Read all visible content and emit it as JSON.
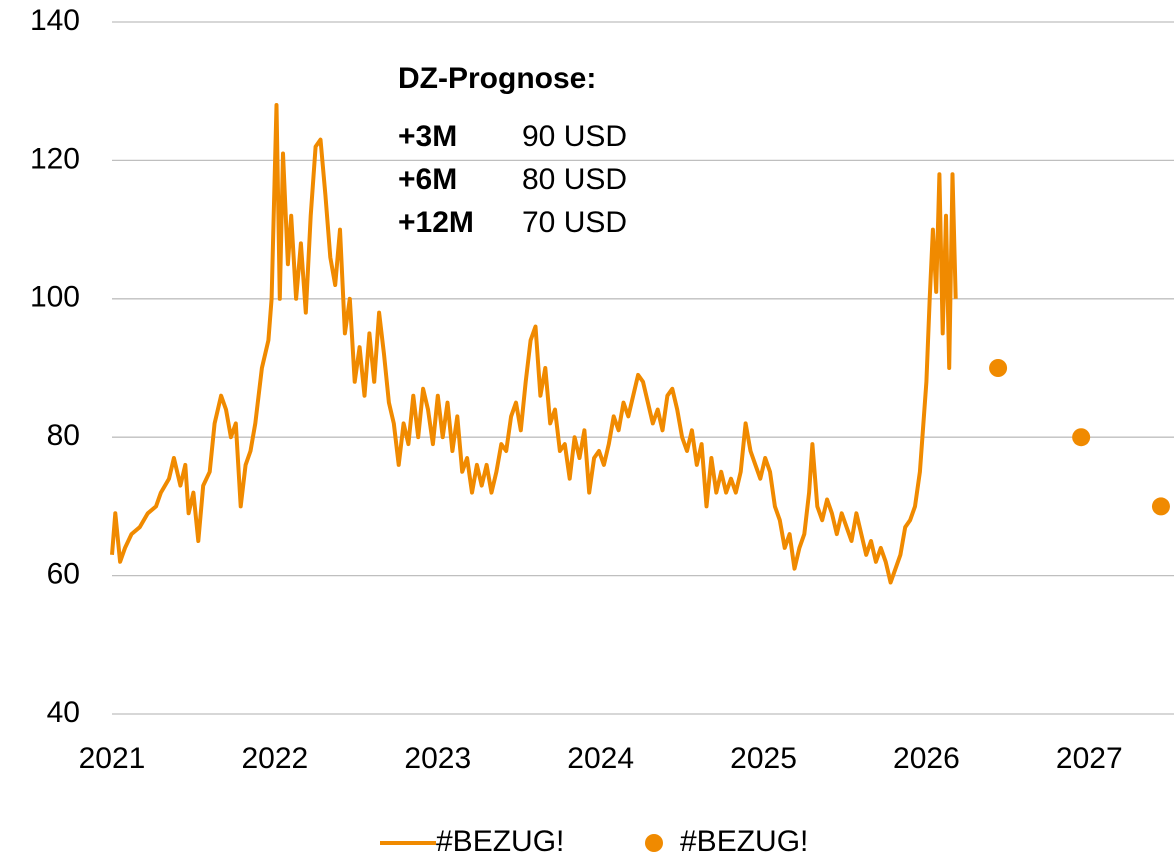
{
  "chart_data": {
    "type": "line",
    "annotation": {
      "title": "DZ-Prognose:",
      "rows": [
        {
          "label": "+3M",
          "text": "90 USD"
        },
        {
          "label": "+6M",
          "text": "80 USD"
        },
        {
          "label": "+12M",
          "text": "70 USD"
        }
      ]
    },
    "xlim": [
      2021,
      2027.52
    ],
    "xticks": [
      2021,
      2022,
      2023,
      2024,
      2025,
      2026,
      2027
    ],
    "ylim": [
      40,
      140
    ],
    "yticks": [
      40,
      60,
      80,
      100,
      120,
      140
    ],
    "grid": true,
    "legend": "bottom",
    "series": [
      {
        "name": "#BEZUG!",
        "type": "line",
        "color": "#f08a00",
        "x": [
          2021.0,
          2021.02,
          2021.05,
          2021.08,
          2021.12,
          2021.17,
          2021.22,
          2021.27,
          2021.3,
          2021.35,
          2021.38,
          2021.42,
          2021.45,
          2021.47,
          2021.5,
          2021.53,
          2021.56,
          2021.6,
          2021.63,
          2021.67,
          2021.7,
          2021.73,
          2021.76,
          2021.79,
          2021.82,
          2021.85,
          2021.88,
          2021.92,
          2021.96,
          2021.98,
          2022.01,
          2022.03,
          2022.05,
          2022.08,
          2022.1,
          2022.13,
          2022.16,
          2022.19,
          2022.22,
          2022.25,
          2022.28,
          2022.31,
          2022.34,
          2022.37,
          2022.4,
          2022.43,
          2022.46,
          2022.49,
          2022.52,
          2022.55,
          2022.58,
          2022.61,
          2022.64,
          2022.67,
          2022.7,
          2022.73,
          2022.76,
          2022.79,
          2022.82,
          2022.85,
          2022.88,
          2022.91,
          2022.94,
          2022.97,
          2023.0,
          2023.03,
          2023.06,
          2023.09,
          2023.12,
          2023.15,
          2023.18,
          2023.21,
          2023.24,
          2023.27,
          2023.3,
          2023.33,
          2023.36,
          2023.39,
          2023.42,
          2023.45,
          2023.48,
          2023.51,
          2023.54,
          2023.57,
          2023.6,
          2023.63,
          2023.66,
          2023.69,
          2023.72,
          2023.75,
          2023.78,
          2023.81,
          2023.84,
          2023.87,
          2023.9,
          2023.93,
          2023.96,
          2023.99,
          2024.02,
          2024.05,
          2024.08,
          2024.11,
          2024.14,
          2024.17,
          2024.2,
          2024.23,
          2024.26,
          2024.29,
          2024.32,
          2024.35,
          2024.38,
          2024.41,
          2024.44,
          2024.47,
          2024.5,
          2024.53,
          2024.56,
          2024.59,
          2024.62,
          2024.65,
          2024.68,
          2024.71,
          2024.74,
          2024.77,
          2024.8,
          2024.83,
          2024.86,
          2024.89,
          2024.92,
          2024.95,
          2024.98,
          2025.01,
          2025.04,
          2025.07,
          2025.1,
          2025.13,
          2025.16,
          2025.19,
          2025.22,
          2025.25,
          2025.28,
          2025.3,
          2025.33,
          2025.36,
          2025.39,
          2025.42,
          2025.45,
          2025.48,
          2025.51,
          2025.54,
          2025.57,
          2025.6,
          2025.63,
          2025.66,
          2025.69,
          2025.72,
          2025.75,
          2025.78,
          2025.81,
          2025.84,
          2025.87,
          2025.9,
          2025.93,
          2025.96,
          2026.0,
          2026.02,
          2026.04,
          2026.06,
          2026.08,
          2026.1,
          2026.12,
          2026.14,
          2026.16,
          2026.18
        ],
        "values": [
          63,
          69,
          62,
          64,
          66,
          67,
          69,
          70,
          72,
          74,
          77,
          73,
          76,
          69,
          72,
          65,
          73,
          75,
          82,
          86,
          84,
          80,
          82,
          70,
          76,
          78,
          82,
          90,
          94,
          100,
          128,
          100,
          121,
          105,
          112,
          100,
          108,
          98,
          112,
          122,
          123,
          115,
          106,
          102,
          110,
          95,
          100,
          88,
          93,
          86,
          95,
          88,
          98,
          92,
          85,
          82,
          76,
          82,
          79,
          86,
          80,
          87,
          84,
          79,
          86,
          80,
          85,
          78,
          83,
          75,
          77,
          72,
          76,
          73,
          76,
          72,
          75,
          79,
          78,
          83,
          85,
          81,
          88,
          94,
          96,
          86,
          90,
          82,
          84,
          78,
          79,
          74,
          80,
          77,
          81,
          72,
          77,
          78,
          76,
          79,
          83,
          81,
          85,
          83,
          86,
          89,
          88,
          85,
          82,
          84,
          81,
          86,
          87,
          84,
          80,
          78,
          81,
          76,
          79,
          70,
          77,
          72,
          75,
          72,
          74,
          72,
          75,
          82,
          78,
          76,
          74,
          77,
          75,
          70,
          68,
          64,
          66,
          61,
          64,
          66,
          72,
          79,
          70,
          68,
          71,
          69,
          66,
          69,
          67,
          65,
          69,
          66,
          63,
          65,
          62,
          64,
          62,
          59,
          61,
          63,
          67,
          68,
          70,
          75,
          88,
          100,
          110,
          101,
          118,
          95,
          112,
          90,
          118,
          100
        ]
      },
      {
        "name": "#BEZUG!",
        "type": "scatter",
        "color": "#f08a00",
        "x": [
          2026.44,
          2026.95,
          2027.44
        ],
        "values": [
          90,
          80,
          70
        ]
      }
    ]
  }
}
